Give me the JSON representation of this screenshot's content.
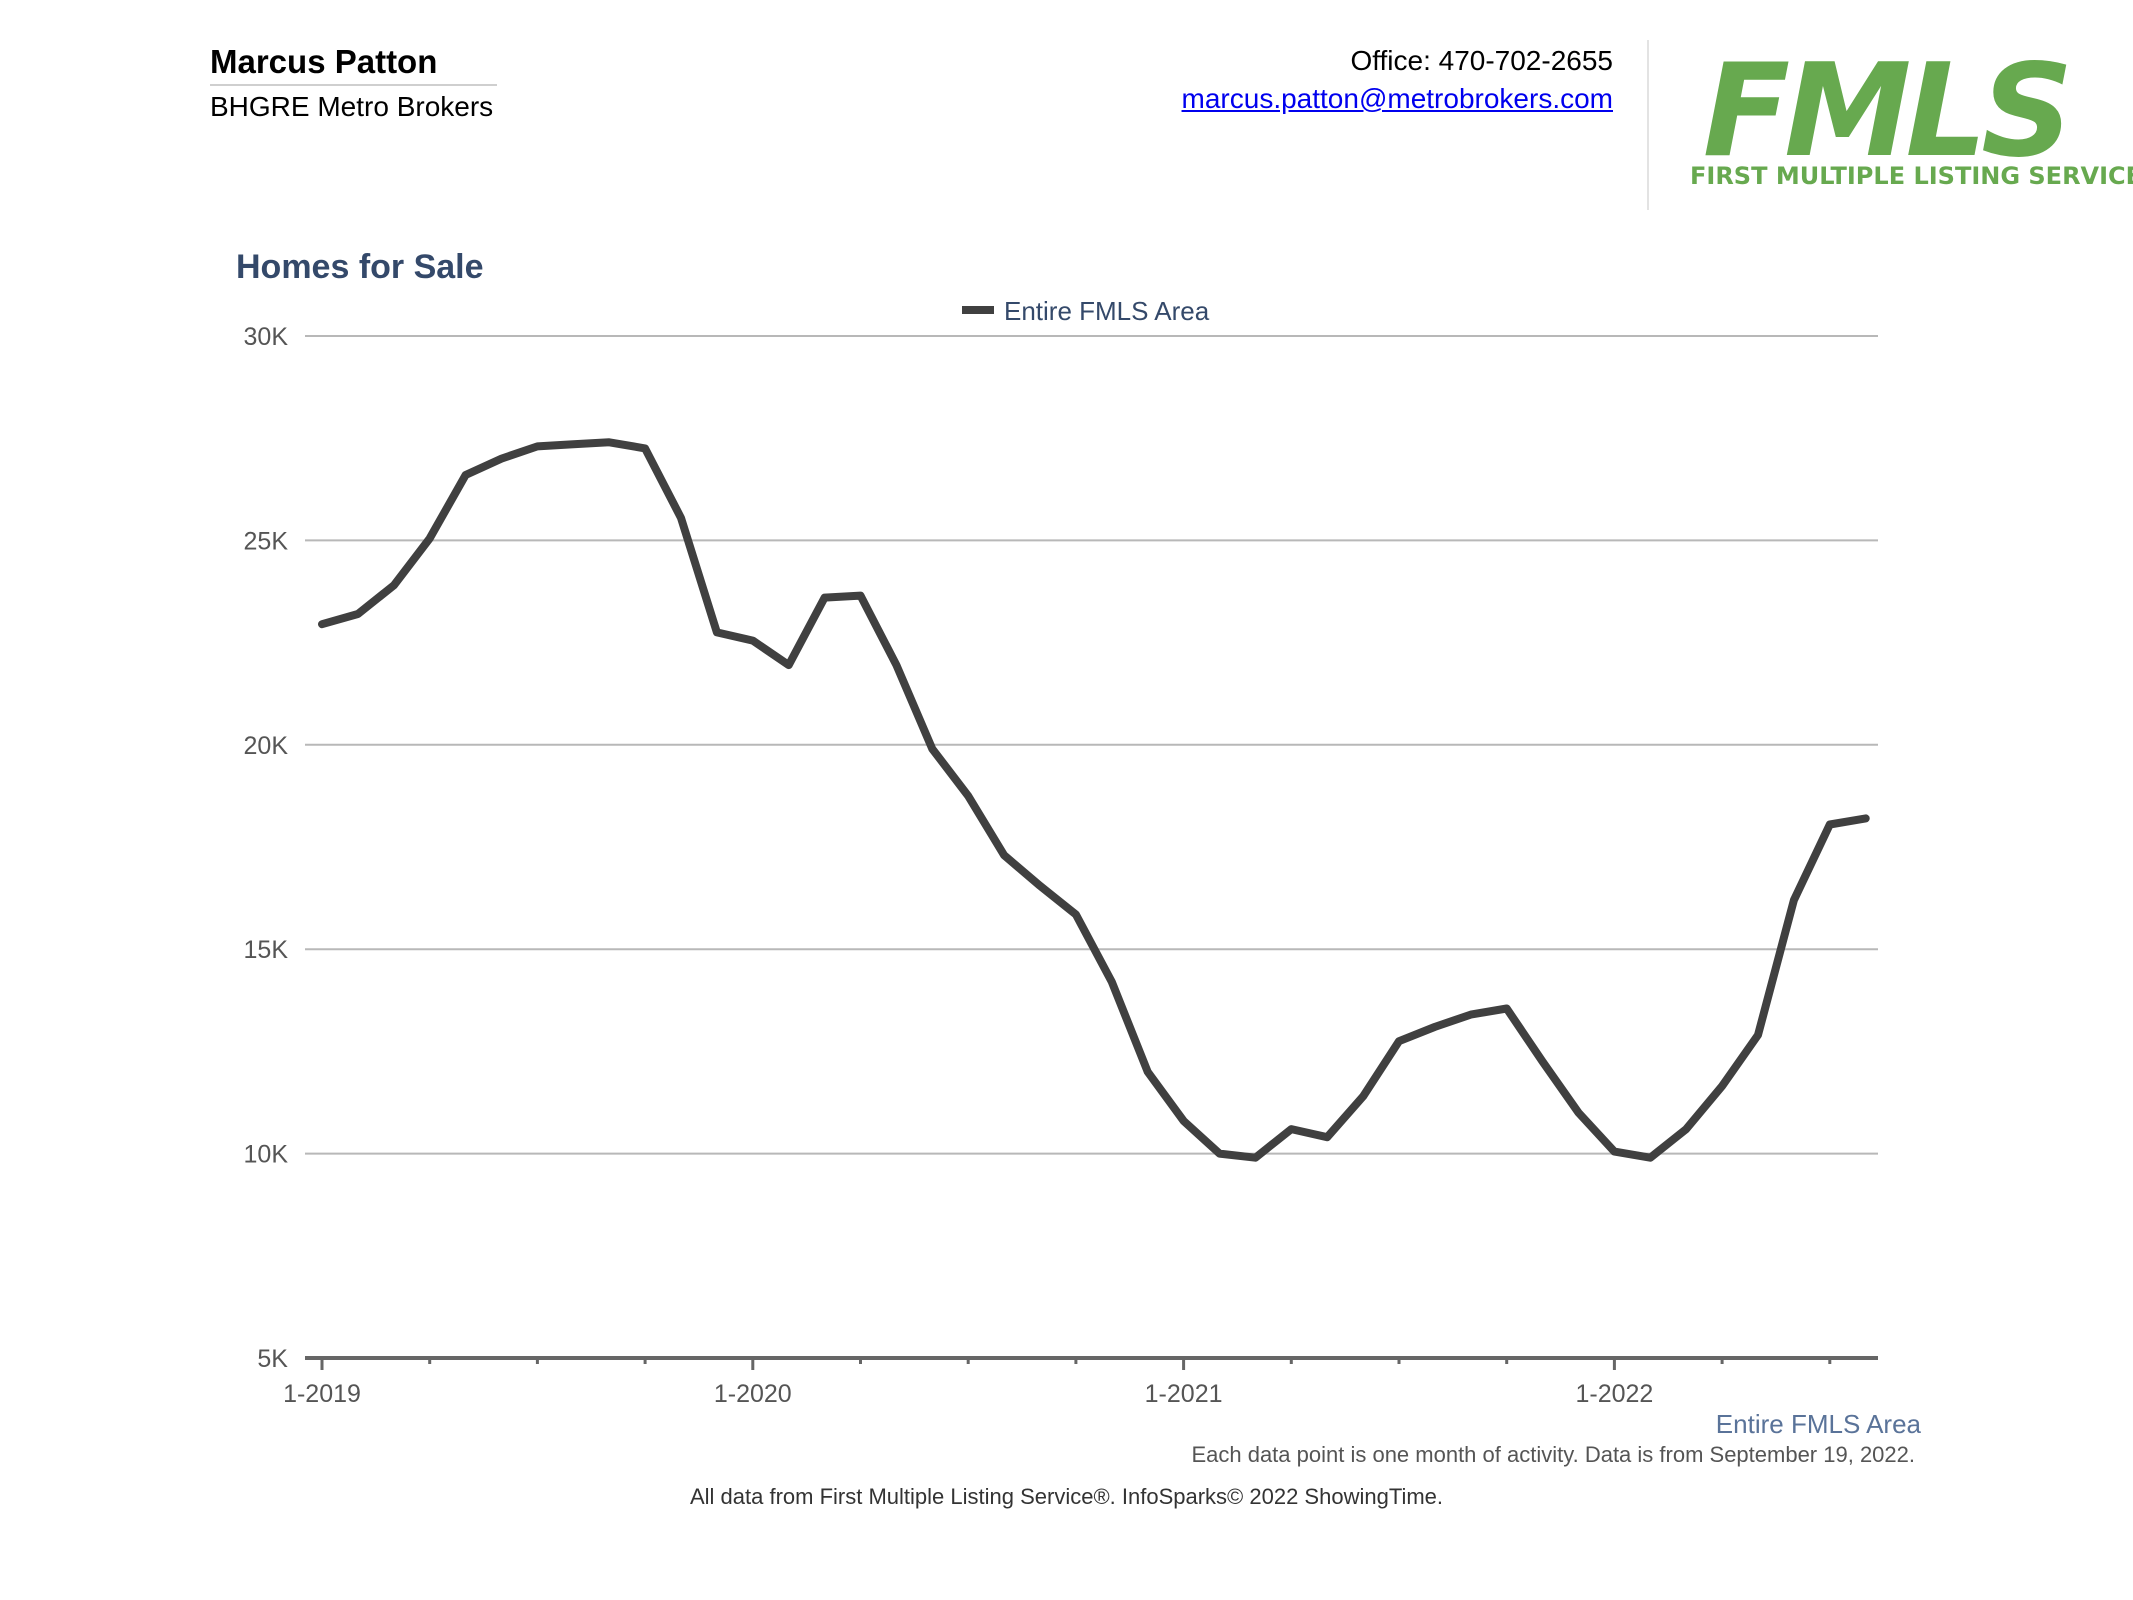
{
  "header": {
    "agent_name": "Marcus Patton",
    "company": "BHGRE Metro Brokers",
    "office": "Office: 470-702-2655",
    "email": "marcus.patton@metrobrokers.com",
    "logo_text": "FMLS",
    "logo_subtitle": "FIRST MULTIPLE LISTING SERVICE"
  },
  "chart_data": {
    "type": "line",
    "title": "Homes for Sale",
    "xlabel": "",
    "ylabel": "",
    "ylim": [
      5000,
      30000
    ],
    "yticks": [
      5000,
      10000,
      15000,
      20000,
      25000,
      30000
    ],
    "ytick_labels": [
      "5K",
      "10K",
      "15K",
      "20K",
      "25K",
      "30K"
    ],
    "xtick_labels": [
      "1-2019",
      "1-2020",
      "1-2021",
      "1-2022"
    ],
    "grid": true,
    "legend_placement": "top",
    "series_label": "Entire FMLS Area",
    "series": [
      {
        "name": "Entire FMLS Area",
        "color": "#404040",
        "x": [
          "2019-01",
          "2019-02",
          "2019-03",
          "2019-04",
          "2019-05",
          "2019-06",
          "2019-07",
          "2019-08",
          "2019-09",
          "2019-10",
          "2019-11",
          "2019-12",
          "2020-01",
          "2020-02",
          "2020-03",
          "2020-04",
          "2020-05",
          "2020-06",
          "2020-07",
          "2020-08",
          "2020-09",
          "2020-10",
          "2020-11",
          "2020-12",
          "2021-01",
          "2021-02",
          "2021-03",
          "2021-04",
          "2021-05",
          "2021-06",
          "2021-07",
          "2021-08",
          "2021-09",
          "2021-10",
          "2021-11",
          "2021-12",
          "2022-01",
          "2022-02",
          "2022-03",
          "2022-04",
          "2022-05",
          "2022-06",
          "2022-07",
          "2022-08"
        ],
        "values": [
          22950,
          23200,
          23900,
          25050,
          26600,
          27000,
          27300,
          27350,
          27400,
          27250,
          25550,
          22750,
          22550,
          21950,
          23600,
          23650,
          21950,
          19900,
          18750,
          17300,
          16550,
          15850,
          14200,
          12000,
          10800,
          10000,
          9900,
          10600,
          10400,
          11400,
          12750,
          13100,
          13400,
          13550,
          12250,
          11000,
          10050,
          9900,
          10600,
          11650,
          12900,
          16200,
          18050,
          18200
        ]
      }
    ]
  },
  "footnote": "Each data point is one month of activity. Data is from September 19, 2022.",
  "source": "All data from First Multiple Listing Service®. InfoSparks© 2022 ShowingTime."
}
